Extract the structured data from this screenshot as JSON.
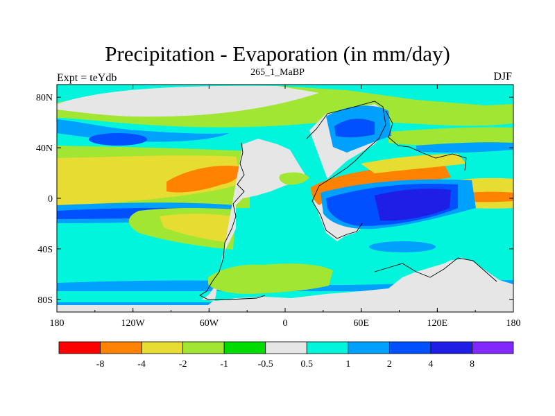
{
  "title": "Precipitation - Evaporation (in mm/day)",
  "subtitle": "265_1_MaBP",
  "left_label": "Expt = teYdb",
  "right_label": "DJF",
  "chart_data": {
    "type": "heatmap",
    "title": "Precipitation - Evaporation (in mm/day)",
    "x_axis": {
      "range": [
        -180,
        180
      ],
      "tick_labels": [
        "180",
        "120W",
        "60W",
        "0",
        "60E",
        "120E",
        "180"
      ]
    },
    "y_axis": {
      "range": [
        -90,
        90
      ],
      "tick_labels": [
        "80S",
        "40S",
        "0",
        "40N",
        "80N"
      ]
    },
    "colorbar": {
      "colors": [
        "#ff0000",
        "#ff8200",
        "#e6dc32",
        "#a0e632",
        "#00dc00",
        "#e6e6e6",
        "#00f5dc",
        "#00a0ff",
        "#0050ff",
        "#1e1ee6",
        "#8228ff"
      ],
      "labels": [
        "-8",
        "-4",
        "-2",
        "-1",
        "-0.5",
        "0.5",
        "1",
        "2",
        "4",
        "8"
      ]
    }
  }
}
